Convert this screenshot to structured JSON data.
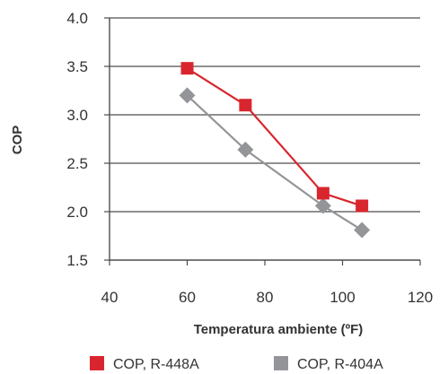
{
  "chart_data": {
    "type": "line",
    "xlabel": "Temperatura ambiente (ºF)",
    "ylabel": "COP",
    "xlim": [
      40,
      120
    ],
    "ylim": [
      1.5,
      4.0
    ],
    "xticks": [
      "40",
      "60",
      "80",
      "100",
      "120"
    ],
    "yticks": [
      "1.5",
      "2.0",
      "2.5",
      "3.0",
      "3.5",
      "4.0"
    ],
    "grid": "horizontal",
    "legend_position": "bottom",
    "series": [
      {
        "name": "COP, R-448A",
        "color": "#d9262e",
        "marker": "square",
        "x": [
          60,
          75,
          95,
          105
        ],
        "y": [
          3.48,
          3.1,
          2.19,
          2.06
        ]
      },
      {
        "name": "COP, R-404A",
        "color": "#939598",
        "marker": "diamond",
        "x": [
          60,
          75,
          95,
          105
        ],
        "y": [
          3.2,
          2.64,
          2.06,
          1.81
        ]
      }
    ]
  }
}
